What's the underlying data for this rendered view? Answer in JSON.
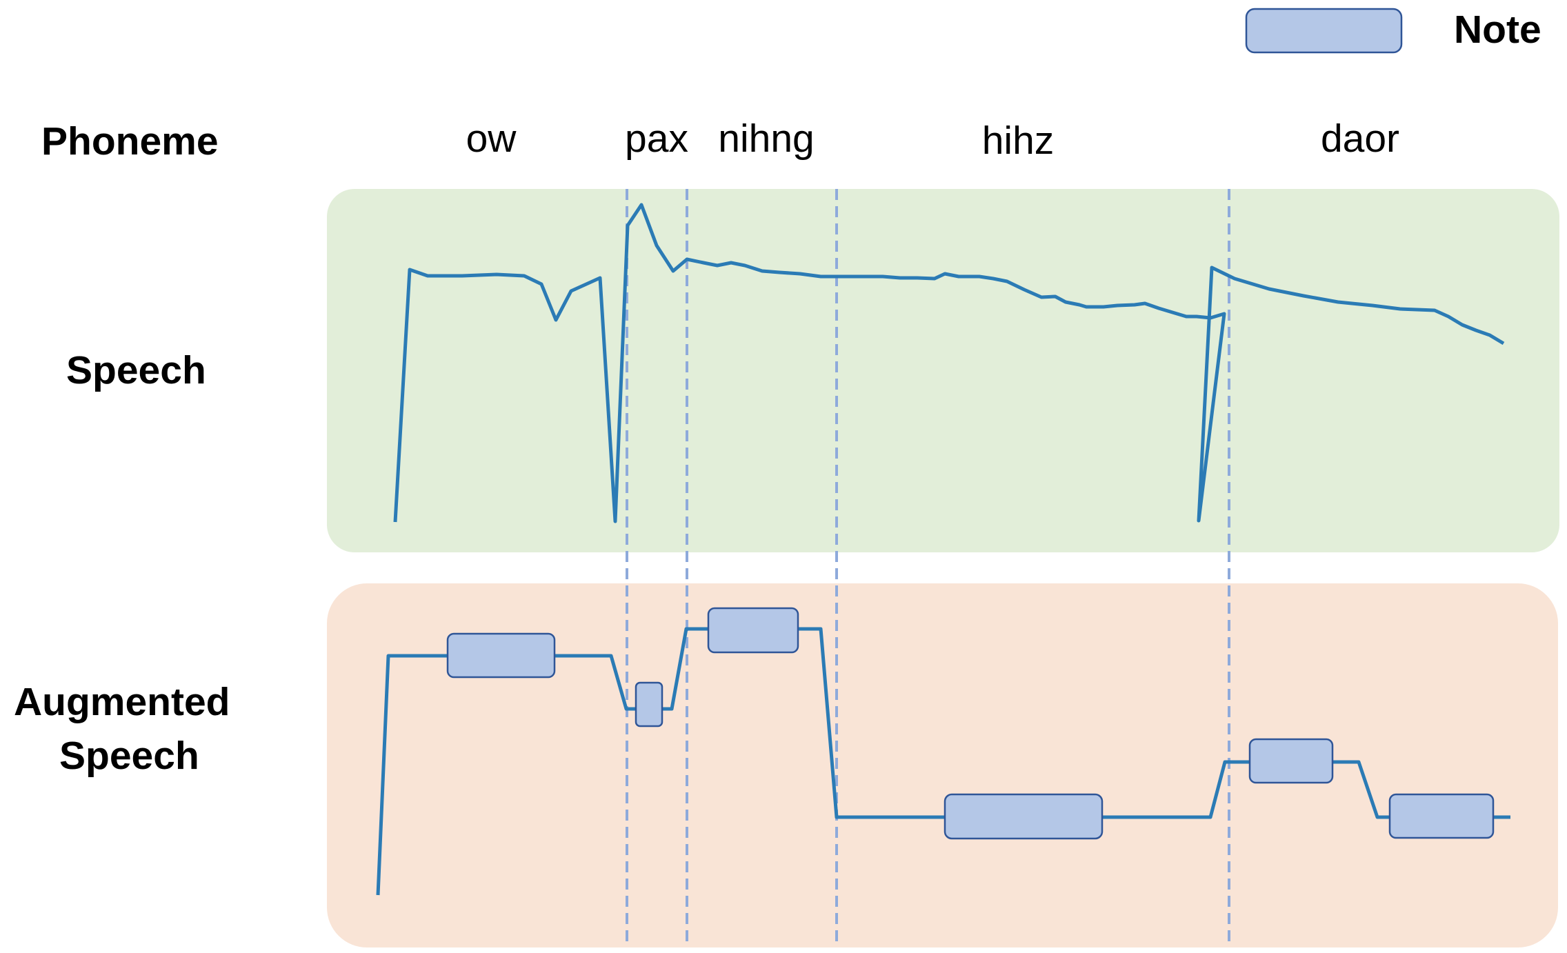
{
  "labels": {
    "phoneme_row": "Phoneme",
    "speech_row": "Speech",
    "augmented_row_line1": "Augmented",
    "augmented_row_line2": "Speech"
  },
  "legend": {
    "label": "Note",
    "icon": "note-box-icon"
  },
  "phonemes": [
    "ow",
    "pax",
    "nihng",
    "hihz",
    "daor"
  ],
  "colors": {
    "speech_panel": "#e2eed9",
    "augmented_panel": "#f9e4d6",
    "curve": "#2b7bb5",
    "note_fill": "#b4c7e7",
    "note_stroke": "#2f5597",
    "boundary": "#8eaadb"
  }
}
